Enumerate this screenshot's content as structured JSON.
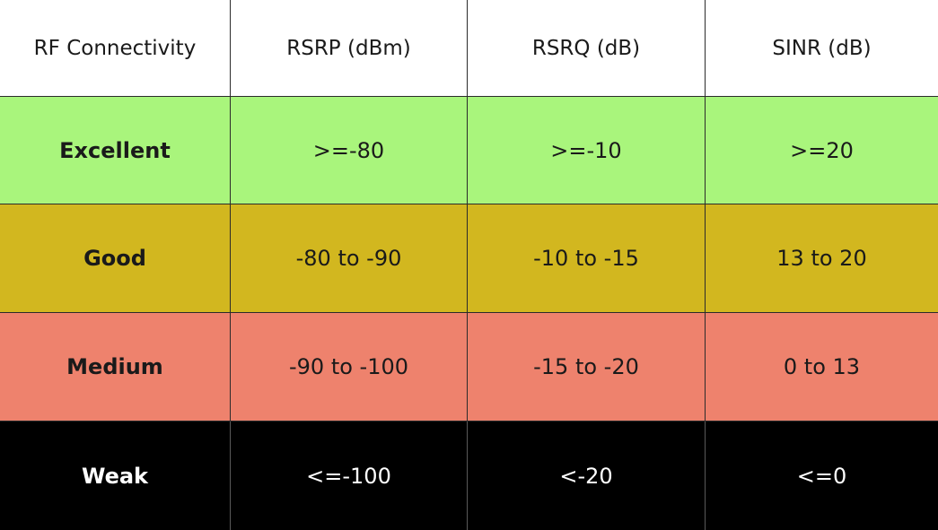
{
  "table": {
    "headers": [
      "RF Connectivity",
      "RSRP (dBm)",
      "RSRQ (dB)",
      "SINR (dB)"
    ],
    "rows": [
      {
        "label": "Excellent",
        "rsrp": ">=-80",
        "rsrq": ">=-10",
        "sinr": ">=20",
        "color": "#a9f57c"
      },
      {
        "label": "Good",
        "rsrp": "-80 to -90",
        "rsrq": "-10 to -15",
        "sinr": "13 to 20",
        "color": "#d2b71f"
      },
      {
        "label": "Medium",
        "rsrp": "-90 to -100",
        "rsrq": "-15 to -20",
        "sinr": "0 to 13",
        "color": "#ee826d"
      },
      {
        "label": "Weak",
        "rsrp": "<=-100",
        "rsrq": "<-20",
        "sinr": "<=0",
        "color": "#000000"
      }
    ]
  }
}
